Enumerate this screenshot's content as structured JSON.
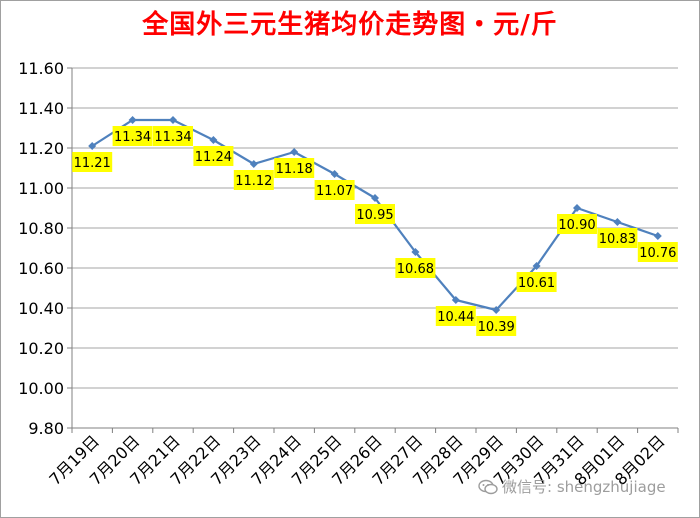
{
  "chart_data": {
    "type": "line",
    "title": "全国外三元生猪均价走势图・元/斤",
    "xlabel": "",
    "ylabel": "",
    "categories": [
      "7月19日",
      "7月20日",
      "7月21日",
      "7月22日",
      "7月23日",
      "7月24日",
      "7月25日",
      "7月26日",
      "7月27日",
      "7月28日",
      "7月29日",
      "7月30日",
      "7月31日",
      "8月01日",
      "8月02日"
    ],
    "series": [
      {
        "values": [
          11.21,
          11.34,
          11.34,
          11.24,
          11.12,
          11.18,
          11.07,
          10.95,
          10.68,
          10.44,
          10.39,
          10.61,
          10.9,
          10.83,
          10.76
        ],
        "labels": [
          "11.21",
          "11.34",
          "11.34",
          "11.24",
          "11.12",
          "11.18",
          "11.07",
          "10.95",
          "10.68",
          "10.44",
          "10.39",
          "10.61",
          "10.90",
          "10.83",
          "10.76"
        ]
      }
    ],
    "ylim": [
      9.8,
      11.6
    ],
    "yticks": [
      "9.80",
      "10.00",
      "10.20",
      "10.40",
      "10.60",
      "10.80",
      "11.00",
      "11.20",
      "11.40",
      "11.60"
    ],
    "grid": true,
    "legend": "none",
    "colors": {
      "line": "#4f81bd",
      "label_bg": "#ffff00",
      "title": "#ff0000",
      "grid": "#a6a6a6"
    }
  },
  "watermark": {
    "text": "微信号: shengzhujiage",
    "icon": "wechat-icon"
  }
}
